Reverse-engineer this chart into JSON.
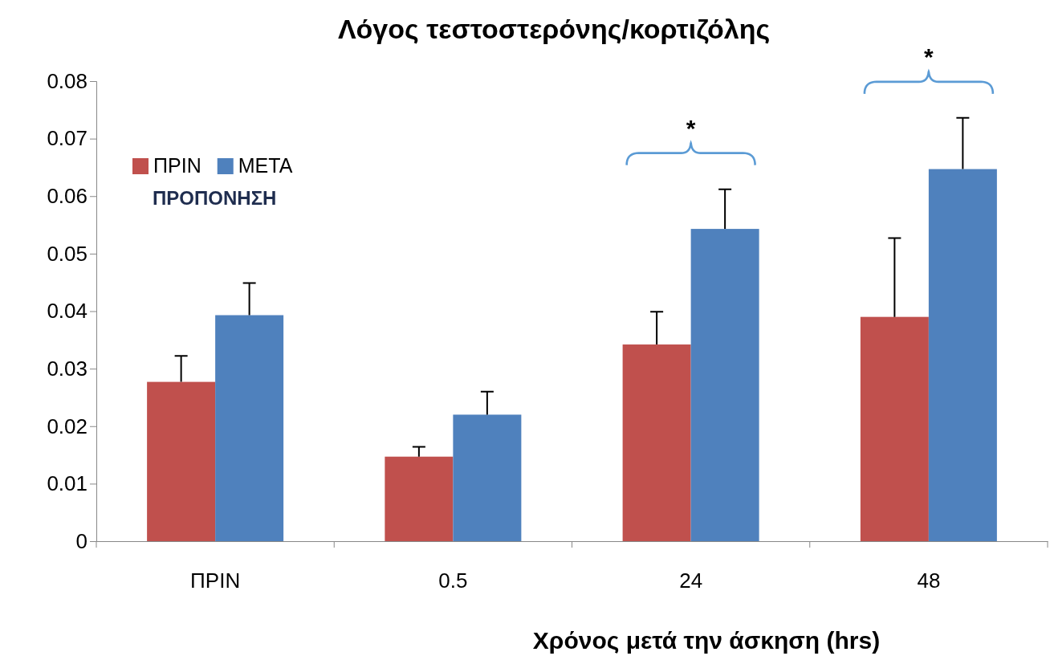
{
  "chart_data": {
    "type": "bar",
    "title": "Λόγος τεστοστερόνης/κορτιζόλης",
    "xlabel": "Χρόνος μετά την άσκηση (hrs)",
    "legend_title": "ΠΡΟΠΟΝΗΣΗ",
    "categories": [
      "ΠΡΙΝ",
      "0.5",
      "24",
      "48"
    ],
    "series": [
      {
        "name": "ΠΡΙΝ",
        "color": "#c0504d",
        "values": [
          0.0277,
          0.0147,
          0.0342,
          0.039
        ],
        "errors": [
          [
            0.0277,
            0.0322
          ],
          [
            0.0147,
            0.0164
          ],
          [
            0.0342,
            0.0399
          ],
          [
            0.039,
            0.0527
          ]
        ]
      },
      {
        "name": "ΜΕΤΑ",
        "color": "#4f81bd",
        "values": [
          0.0393,
          0.022,
          0.0543,
          0.0647
        ],
        "errors": [
          [
            0.0393,
            0.0449
          ],
          [
            0.022,
            0.026
          ],
          [
            0.0543,
            0.0612
          ],
          [
            0.0647,
            0.0736
          ]
        ]
      }
    ],
    "ylim": [
      0,
      0.08
    ],
    "yticks": [
      {
        "value": 0,
        "label": "0"
      },
      0.01,
      0.02,
      0.03,
      0.04,
      0.05,
      0.06,
      0.07,
      0.08
    ],
    "annotations": [
      "*",
      "*"
    ],
    "legend": "top left",
    "grid": false
  }
}
